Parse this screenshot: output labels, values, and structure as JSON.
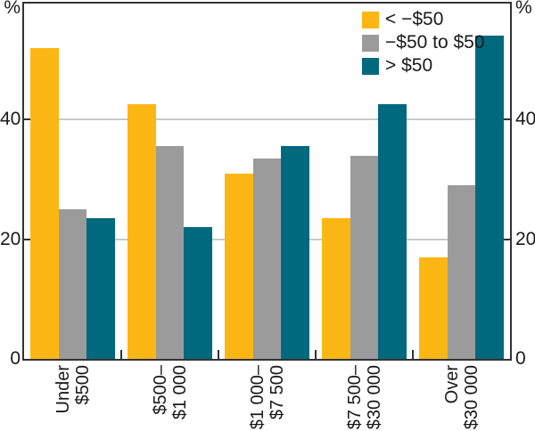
{
  "chart_data": {
    "type": "bar",
    "y_axis_unit": "%",
    "ylim": [
      0,
      60
    ],
    "yticks": [
      0,
      20,
      40
    ],
    "grid": true,
    "legend_position": "top-right-inside",
    "categories": [
      "Under $500",
      "$500–$1 000",
      "$1 000–$7 500",
      "$7 500–$30 000",
      "Over $30 000"
    ],
    "category_label_lines": [
      [
        "Under",
        "$500"
      ],
      [
        "$500–",
        "$1 000"
      ],
      [
        "$1 000–",
        "$7 500"
      ],
      [
        "$7 500–",
        "$30 000"
      ],
      [
        "Over",
        "$30 000"
      ]
    ],
    "series": [
      {
        "name": "< −$50",
        "color": "#FDB714",
        "values": [
          52,
          42.5,
          31,
          23.5,
          17
        ]
      },
      {
        "name": "−$50 to $50",
        "color": "#9B9B9B",
        "values": [
          25,
          35.5,
          33.5,
          34,
          29
        ]
      },
      {
        "name": "> $50",
        "color": "#00697E",
        "values": [
          23.5,
          22,
          35.5,
          42.5,
          54
        ]
      }
    ]
  },
  "colors": {
    "axis": "#333333",
    "gridline": "#C9C9C9",
    "text": "#1A1A1A"
  }
}
